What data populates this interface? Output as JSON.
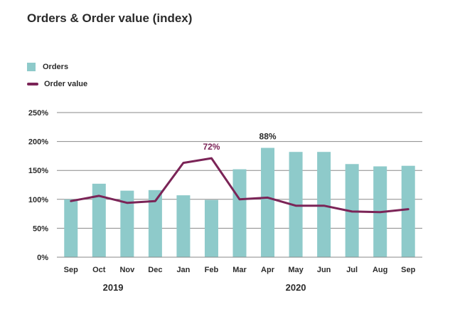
{
  "chart_data": {
    "type": "bar+line",
    "title": "Orders & Order value (index)",
    "categories": [
      "Sep",
      "Oct",
      "Nov",
      "Dec",
      "Jan",
      "Feb",
      "Mar",
      "Apr",
      "May",
      "Jun",
      "Jul",
      "Aug",
      "Sep"
    ],
    "year_labels": [
      {
        "label": "2019",
        "start_index": 0,
        "end_index": 3
      },
      {
        "label": "2020",
        "start_index": 4,
        "end_index": 12
      }
    ],
    "series": [
      {
        "name": "Orders",
        "type": "bar",
        "color": "#8ecaca",
        "values": [
          100,
          127,
          115,
          116,
          107,
          99,
          152,
          189,
          182,
          182,
          161,
          157,
          158
        ]
      },
      {
        "name": "Order value",
        "type": "line",
        "color": "#7b2457",
        "values": [
          97,
          106,
          94,
          97,
          163,
          171,
          100,
          103,
          89,
          89,
          79,
          78,
          83
        ]
      }
    ],
    "annotations": [
      {
        "text": "72%",
        "series": "Order value",
        "index": 5,
        "color": "#7b2457"
      },
      {
        "text": "88%",
        "series": "Orders",
        "index": 7,
        "color": "#2b2b2b"
      }
    ],
    "ylim": [
      0,
      250
    ],
    "yticks": [
      0,
      50,
      100,
      150,
      200,
      250
    ],
    "ytick_labels": [
      "0%",
      "50%",
      "100%",
      "150%",
      "200%",
      "250%"
    ],
    "grid": true,
    "legend_position": "top-left"
  }
}
